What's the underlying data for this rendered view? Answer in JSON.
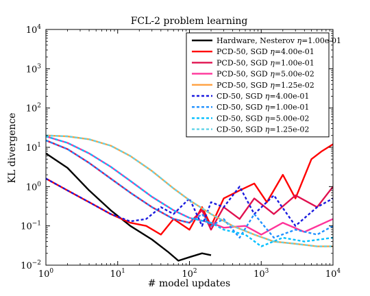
{
  "chart_data": {
    "type": "line",
    "title": "FCL-2 problem learning",
    "xlabel": "# model updates",
    "ylabel": "KL divergence",
    "xscale": "log",
    "yscale": "log",
    "xlim": [
      1,
      10000
    ],
    "ylim": [
      0.01,
      10000
    ],
    "x_ticks": [
      {
        "base": "10",
        "exp": "0"
      },
      {
        "base": "10",
        "exp": "1"
      },
      {
        "base": "10",
        "exp": "2"
      },
      {
        "base": "10",
        "exp": "3"
      },
      {
        "base": "10",
        "exp": "4"
      }
    ],
    "y_ticks": [
      {
        "base": "10",
        "exp": "−2"
      },
      {
        "base": "10",
        "exp": "−1"
      },
      {
        "base": "10",
        "exp": "0"
      },
      {
        "base": "10",
        "exp": "1"
      },
      {
        "base": "10",
        "exp": "2"
      },
      {
        "base": "10",
        "exp": "3"
      },
      {
        "base": "10",
        "exp": "4"
      }
    ],
    "grid": false,
    "legend_position": "top-right",
    "series": [
      {
        "name": "Hardware, Nesterov",
        "eta_label": "η",
        "eta_value": "=1.00e-01",
        "color": "#000000",
        "dash": "solid",
        "x": [
          1,
          2,
          4,
          8,
          15,
          30,
          50,
          70,
          100,
          150,
          200
        ],
        "y": [
          7,
          3,
          0.8,
          0.25,
          0.1,
          0.045,
          0.022,
          0.013,
          0.016,
          0.02,
          0.018
        ]
      },
      {
        "name": "PCD-50, SGD",
        "eta_label": "η",
        "eta_value": "=4.00e-01",
        "color": "#ff0000",
        "dash": "solid",
        "x": [
          1,
          2,
          4,
          8,
          15,
          25,
          40,
          60,
          100,
          150,
          200,
          300,
          500,
          800,
          1200,
          2000,
          3000,
          5000,
          7000,
          10000
        ],
        "y": [
          1.6,
          0.8,
          0.4,
          0.2,
          0.12,
          0.1,
          0.06,
          0.15,
          0.08,
          0.3,
          0.1,
          0.5,
          0.8,
          1.2,
          0.4,
          2,
          0.5,
          5,
          8,
          12
        ]
      },
      {
        "name": "PCD-50, SGD",
        "eta_label": "η",
        "eta_value": "=1.00e-01",
        "color": "#e0104f",
        "dash": "solid",
        "x": [
          1,
          2,
          4,
          8,
          15,
          30,
          60,
          100,
          150,
          200,
          300,
          500,
          800,
          1500,
          3000,
          6000,
          10000
        ],
        "y": [
          15,
          9,
          4,
          1.6,
          0.7,
          0.3,
          0.15,
          0.12,
          0.25,
          0.08,
          0.3,
          0.15,
          0.5,
          0.2,
          0.6,
          0.3,
          1
        ]
      },
      {
        "name": "PCD-50, SGD",
        "eta_label": "η",
        "eta_value": "=5.00e-02",
        "color": "#ff3399",
        "dash": "solid",
        "x": [
          1,
          2,
          4,
          8,
          15,
          30,
          60,
          100,
          200,
          300,
          600,
          1000,
          2000,
          4000,
          10000
        ],
        "y": [
          19,
          13,
          7,
          3.2,
          1.4,
          0.55,
          0.25,
          0.16,
          0.12,
          0.09,
          0.1,
          0.06,
          0.12,
          0.07,
          0.15
        ]
      },
      {
        "name": "PCD-50, SGD",
        "eta_label": "η",
        "eta_value": "=1.25e-02",
        "color": "#ffa040",
        "dash": "solid",
        "x": [
          1,
          2,
          4,
          8,
          15,
          30,
          60,
          100,
          200,
          400,
          800,
          1500,
          3000,
          6000,
          10000
        ],
        "y": [
          20,
          19,
          16,
          11,
          6,
          2.5,
          0.9,
          0.45,
          0.2,
          0.1,
          0.06,
          0.04,
          0.035,
          0.03,
          0.03
        ]
      },
      {
        "name": "CD-50, SGD",
        "eta_label": "η",
        "eta_value": "=4.00e-01",
        "color": "#1a1adf",
        "dash": "dotted",
        "x": [
          1,
          2,
          4,
          8,
          15,
          25,
          40,
          60,
          100,
          150,
          200,
          300,
          500,
          800,
          1500,
          3000,
          6000,
          10000
        ],
        "y": [
          1.6,
          0.8,
          0.4,
          0.2,
          0.13,
          0.15,
          0.3,
          0.2,
          0.5,
          0.1,
          0.4,
          0.3,
          1,
          0.2,
          0.6,
          0.1,
          0.3,
          0.5
        ]
      },
      {
        "name": "CD-50, SGD",
        "eta_label": "η",
        "eta_value": "=1.00e-01",
        "color": "#1e90ff",
        "dash": "dotted",
        "x": [
          1,
          2,
          4,
          8,
          15,
          30,
          60,
          100,
          150,
          200,
          300,
          500,
          800,
          1500,
          3000,
          6000,
          10000
        ],
        "y": [
          15,
          9,
          4,
          1.6,
          0.7,
          0.3,
          0.15,
          0.12,
          0.2,
          0.1,
          0.15,
          0.05,
          0.2,
          0.05,
          0.08,
          0.06,
          0.1
        ]
      },
      {
        "name": "CD-50, SGD",
        "eta_label": "η",
        "eta_value": "=5.00e-02",
        "color": "#00bfff",
        "dash": "dotted",
        "x": [
          1,
          2,
          4,
          8,
          15,
          30,
          60,
          100,
          200,
          300,
          600,
          1000,
          2000,
          4000,
          10000
        ],
        "y": [
          19,
          13,
          7,
          3.2,
          1.4,
          0.55,
          0.25,
          0.16,
          0.12,
          0.08,
          0.06,
          0.03,
          0.05,
          0.04,
          0.05
        ]
      },
      {
        "name": "CD-50, SGD",
        "eta_label": "η",
        "eta_value": "=1.25e-02",
        "color": "#5fd3e8",
        "dash": "dotted",
        "x": [
          1,
          2,
          4,
          8,
          15,
          30,
          60,
          100,
          200,
          400,
          800,
          1500,
          3000,
          6000,
          10000
        ],
        "y": [
          20,
          19,
          16,
          11,
          6,
          2.5,
          0.9,
          0.45,
          0.2,
          0.1,
          0.06,
          0.04,
          0.035,
          0.03,
          0.03
        ]
      }
    ]
  }
}
